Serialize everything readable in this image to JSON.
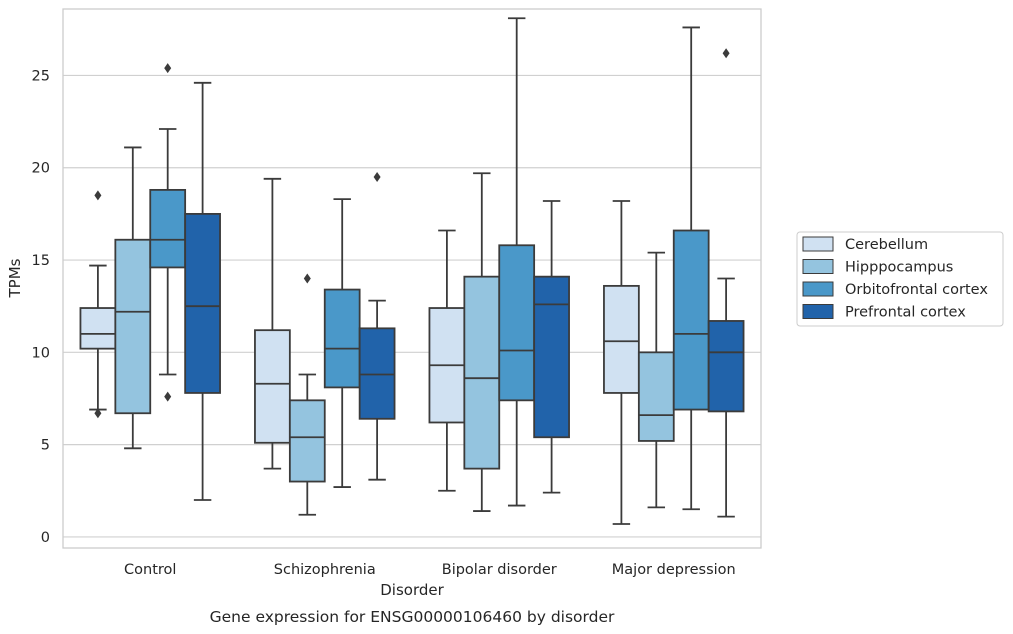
{
  "chart_data": {
    "type": "boxplot",
    "title": "",
    "caption": "Gene expression for ENSG00000106460 by disorder",
    "xlabel": "Disorder",
    "ylabel": "TPMs",
    "ylim": [
      -0.6,
      28.6
    ],
    "yticks": [
      0,
      5,
      10,
      15,
      20,
      25
    ],
    "ytick_labels": [
      "0",
      "5",
      "10",
      "15",
      "20",
      "25"
    ],
    "grid": "horizontal",
    "legend_position": "right",
    "categories": [
      "Control",
      "Schizophrenia",
      "Bipolar disorder",
      "Major depression"
    ],
    "series": [
      {
        "name": "Cerebellum",
        "color": "#d0e1f2",
        "boxes": [
          {
            "whislo": 6.9,
            "q1": 10.2,
            "med": 11.0,
            "q3": 12.4,
            "whishi": 14.7,
            "fliers": [
              18.5,
              6.7
            ]
          },
          {
            "whislo": 3.7,
            "q1": 5.1,
            "med": 8.3,
            "q3": 11.2,
            "whishi": 19.4,
            "fliers": []
          },
          {
            "whislo": 2.5,
            "q1": 6.2,
            "med": 9.3,
            "q3": 12.4,
            "whishi": 16.6,
            "fliers": []
          },
          {
            "whislo": 0.7,
            "q1": 7.8,
            "med": 10.6,
            "q3": 13.6,
            "whishi": 18.2,
            "fliers": []
          }
        ]
      },
      {
        "name": "Hipppocampus",
        "color": "#94c4df",
        "boxes": [
          {
            "whislo": 4.8,
            "q1": 6.7,
            "med": 12.2,
            "q3": 16.1,
            "whishi": 21.1,
            "fliers": []
          },
          {
            "whislo": 1.2,
            "q1": 3.0,
            "med": 5.4,
            "q3": 7.4,
            "whishi": 8.8,
            "fliers": [
              14.0
            ]
          },
          {
            "whislo": 1.4,
            "q1": 3.7,
            "med": 8.6,
            "q3": 14.1,
            "whishi": 19.7,
            "fliers": []
          },
          {
            "whislo": 1.6,
            "q1": 5.2,
            "med": 6.6,
            "q3": 10.0,
            "whishi": 15.4,
            "fliers": []
          }
        ]
      },
      {
        "name": "Orbitofrontal cortex",
        "color": "#4a98c9",
        "boxes": [
          {
            "whislo": 8.8,
            "q1": 14.6,
            "med": 16.1,
            "q3": 18.8,
            "whishi": 22.1,
            "fliers": [
              25.4,
              7.6
            ]
          },
          {
            "whislo": 2.7,
            "q1": 8.1,
            "med": 10.2,
            "q3": 13.4,
            "whishi": 18.3,
            "fliers": []
          },
          {
            "whislo": 1.7,
            "q1": 7.4,
            "med": 10.1,
            "q3": 15.8,
            "whishi": 28.1,
            "fliers": []
          },
          {
            "whislo": 1.5,
            "q1": 6.9,
            "med": 11.0,
            "q3": 16.6,
            "whishi": 27.6,
            "fliers": []
          }
        ]
      },
      {
        "name": "Prefrontal cortex",
        "color": "#2163aa",
        "boxes": [
          {
            "whislo": 2.0,
            "q1": 7.8,
            "med": 12.5,
            "q3": 17.5,
            "whishi": 24.6,
            "fliers": []
          },
          {
            "whislo": 3.1,
            "q1": 6.4,
            "med": 8.8,
            "q3": 11.3,
            "whishi": 12.8,
            "fliers": [
              19.5
            ]
          },
          {
            "whislo": 2.4,
            "q1": 5.4,
            "med": 12.6,
            "q3": 14.1,
            "whishi": 18.2,
            "fliers": []
          },
          {
            "whislo": 1.1,
            "q1": 6.8,
            "med": 10.0,
            "q3": 11.7,
            "whishi": 14.0,
            "fliers": [
              26.2
            ]
          }
        ]
      }
    ]
  }
}
